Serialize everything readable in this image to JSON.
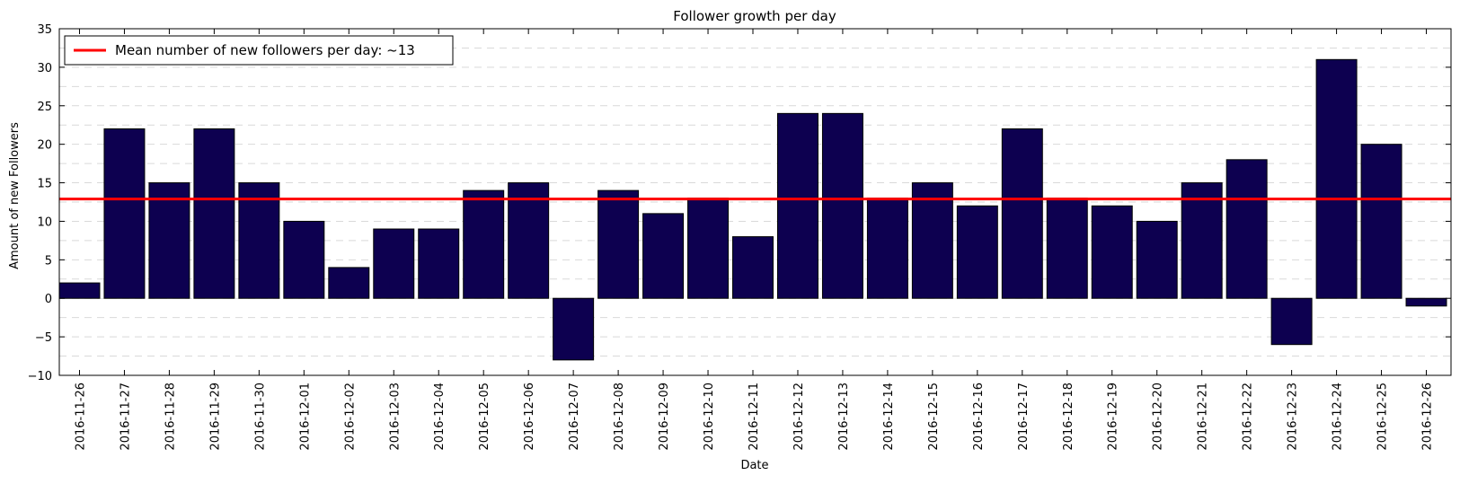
{
  "chart_data": {
    "type": "bar",
    "title": "Follower growth per day",
    "xlabel": "Date",
    "ylabel": "Amount of new Followers",
    "ylim": [
      -10,
      35
    ],
    "yticks": [
      -10,
      -5,
      0,
      5,
      10,
      15,
      20,
      25,
      30,
      35
    ],
    "grid": "horizontal dashed, every 2.5",
    "legend_position": "top-left",
    "categories": [
      "2016-11-26",
      "2016-11-27",
      "2016-11-28",
      "2016-11-29",
      "2016-11-30",
      "2016-12-01",
      "2016-12-02",
      "2016-12-03",
      "2016-12-04",
      "2016-12-05",
      "2016-12-06",
      "2016-12-07",
      "2016-12-08",
      "2016-12-09",
      "2016-12-10",
      "2016-12-11",
      "2016-12-12",
      "2016-12-13",
      "2016-12-14",
      "2016-12-15",
      "2016-12-16",
      "2016-12-17",
      "2016-12-18",
      "2016-12-19",
      "2016-12-20",
      "2016-12-21",
      "2016-12-22",
      "2016-12-23",
      "2016-12-24",
      "2016-12-25",
      "2016-12-26"
    ],
    "values": [
      2,
      22,
      15,
      22,
      15,
      10,
      4,
      9,
      9,
      14,
      15,
      -8,
      14,
      11,
      13,
      8,
      24,
      24,
      13,
      15,
      12,
      22,
      13,
      12,
      10,
      15,
      18,
      -6,
      31,
      20,
      -1
    ],
    "mean_line": {
      "value": 12.9,
      "label": "Mean number of new followers per day: ~13"
    },
    "colors": {
      "bar": "#0d0050",
      "bar_edge": "#000000",
      "mean_line": "#ff0000",
      "grid": "#d9d9d9"
    }
  }
}
